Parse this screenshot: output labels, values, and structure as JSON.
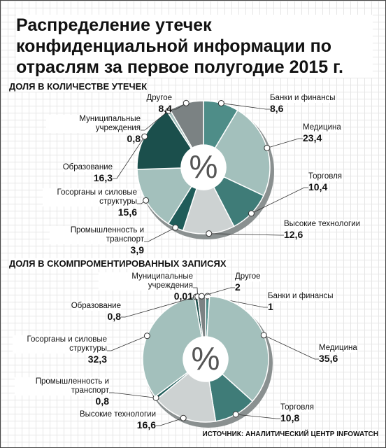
{
  "title": "Распределение утечек конфиденциальной информации по отраслям за первое полугодие 2015 г.",
  "source": "ИСТОЧНИК: АНАЛИТИЧЕСКИЙ ЦЕНТР INFOWATCH",
  "chart_data": [
    {
      "type": "pie",
      "subtitle": "ДОЛЯ В КОЛИЧЕСТВЕ УТЕЧЕК",
      "center_label": "%",
      "categories": [
        "Банки и финансы",
        "Медицина",
        "Торговля",
        "Высокие технологии",
        "Промышленность и транспорт",
        "Госорганы и силовые структуры",
        "Образование",
        "Муниципальные учреждения",
        "Другое"
      ],
      "values": [
        8.6,
        23.4,
        10.4,
        12.6,
        3.9,
        15.6,
        16.3,
        0.8,
        8.4
      ],
      "value_labels": [
        "8,6",
        "23,4",
        "10,4",
        "12,6",
        "3,9",
        "15,6",
        "16,3",
        "0,8",
        "8,4"
      ],
      "colors": [
        "#4e8d88",
        "#a3c0bc",
        "#3f7c78",
        "#cdd2d2",
        "#1f5c59",
        "#a3c0bc",
        "#1b4f4c",
        "#a3c0bc",
        "#7b8283"
      ]
    },
    {
      "type": "pie",
      "subtitle": "ДОЛЯ В СКОМПРОМЕНТИРОВАННЫХ ЗАПИСЯХ",
      "center_label": "%",
      "categories": [
        "Банки и финансы",
        "Медицина",
        "Торговля",
        "Высокие технологии",
        "Промышленность и транспорт",
        "Госорганы и силовые структуры",
        "Образование",
        "Муниципальные учреждения",
        "Другое"
      ],
      "values": [
        1,
        35.6,
        10.8,
        16.6,
        0.8,
        32.3,
        0.8,
        0.01,
        2
      ],
      "value_labels": [
        "1",
        "35,6",
        "10,8",
        "16,6",
        "0,8",
        "32,3",
        "0,8",
        "0,01",
        "2"
      ],
      "colors": [
        "#4e8d88",
        "#a3c0bc",
        "#3f7c78",
        "#cdd2d2",
        "#1f5c59",
        "#a3c0bc",
        "#1b4f4c",
        "#a3c0bc",
        "#7b8283"
      ]
    }
  ]
}
